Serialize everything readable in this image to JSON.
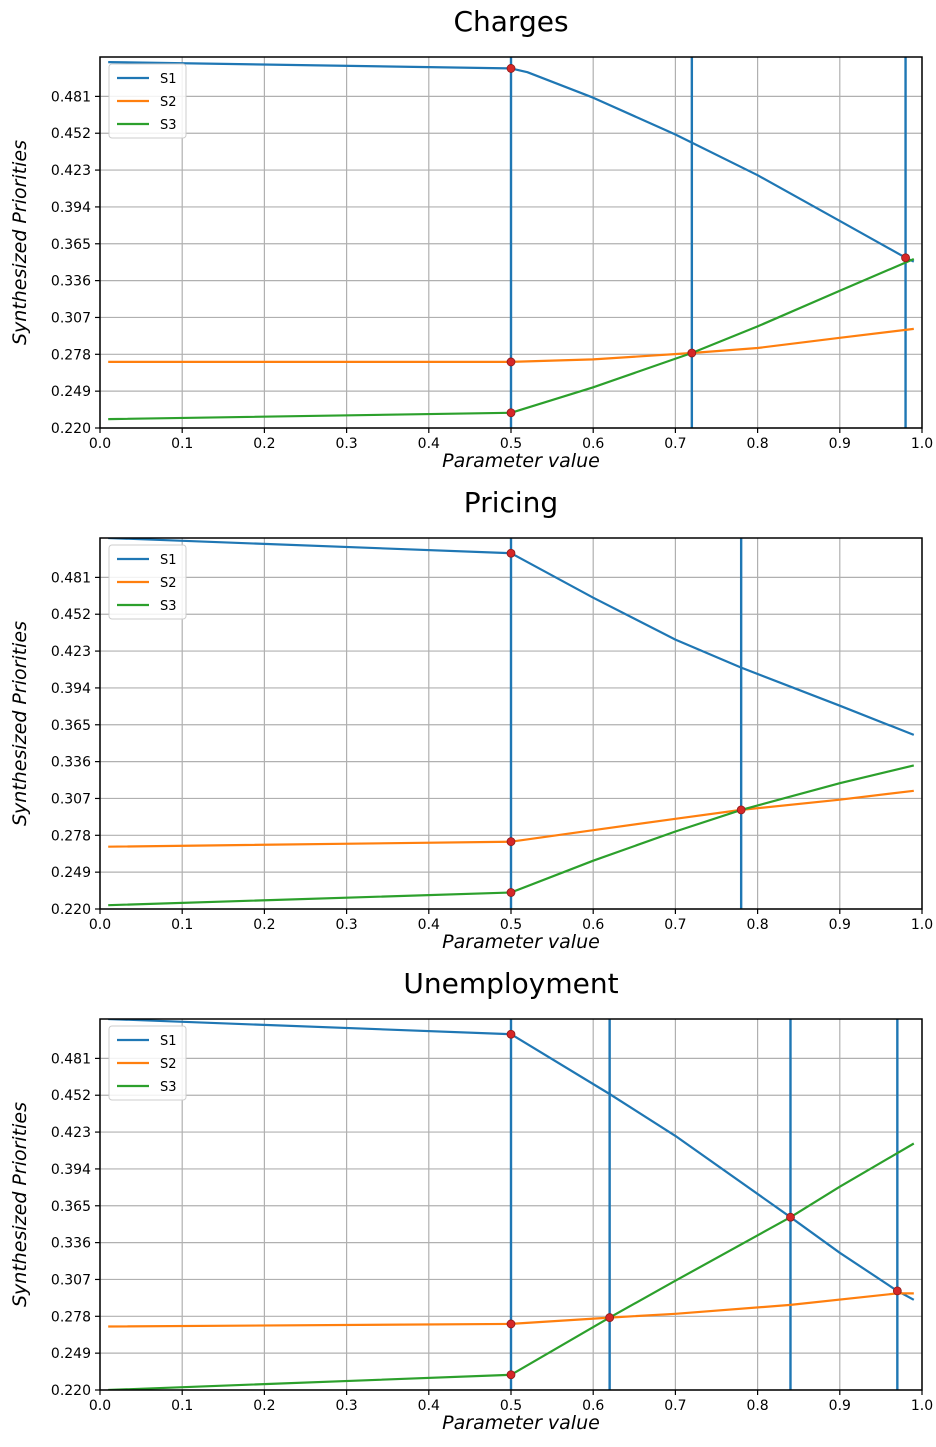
{
  "chart_data": [
    {
      "type": "line",
      "title": "Charges",
      "xlabel": "Parameter value",
      "ylabel": "Synthesized Priorities",
      "xlim": [
        0.0,
        1.0
      ],
      "ylim": [
        0.22,
        0.512
      ],
      "xticks": [
        "0.0",
        "0.1",
        "0.2",
        "0.3",
        "0.4",
        "0.5",
        "0.6",
        "0.7",
        "0.8",
        "0.9",
        "1.0"
      ],
      "yticks": [
        "0.220",
        "0.249",
        "0.278",
        "0.307",
        "0.336",
        "0.365",
        "0.394",
        "0.423",
        "0.452",
        "0.481"
      ],
      "grid": true,
      "legend": "top-left",
      "series": [
        {
          "name": "S1",
          "color": "#1f77b4",
          "x": [
            0.01,
            0.5,
            0.52,
            0.6,
            0.7,
            0.8,
            0.9,
            0.98,
            0.99
          ],
          "y": [
            0.508,
            0.503,
            0.5,
            0.48,
            0.451,
            0.419,
            0.383,
            0.354,
            0.351
          ]
        },
        {
          "name": "S2",
          "color": "#ff7f0e",
          "x": [
            0.01,
            0.5,
            0.6,
            0.72,
            0.8,
            0.9,
            0.99
          ],
          "y": [
            0.272,
            0.272,
            0.274,
            0.279,
            0.283,
            0.291,
            0.298
          ]
        },
        {
          "name": "S3",
          "color": "#2ca02c",
          "x": [
            0.01,
            0.5,
            0.6,
            0.72,
            0.8,
            0.9,
            0.99
          ],
          "y": [
            0.227,
            0.232,
            0.252,
            0.279,
            0.3,
            0.328,
            0.353
          ]
        }
      ],
      "vlines": [
        0.5,
        0.72,
        0.98
      ],
      "markers": [
        [
          0.5,
          0.503
        ],
        [
          0.5,
          0.272
        ],
        [
          0.5,
          0.232
        ],
        [
          0.72,
          0.279
        ],
        [
          0.98,
          0.354
        ]
      ]
    },
    {
      "type": "line",
      "title": "Pricing",
      "xlabel": "Parameter value",
      "ylabel": "Synthesized Priorities",
      "xlim": [
        0.0,
        1.0
      ],
      "ylim": [
        0.22,
        0.512
      ],
      "xticks": [
        "0.0",
        "0.1",
        "0.2",
        "0.3",
        "0.4",
        "0.5",
        "0.6",
        "0.7",
        "0.8",
        "0.9",
        "1.0"
      ],
      "yticks": [
        "0.220",
        "0.249",
        "0.278",
        "0.307",
        "0.336",
        "0.365",
        "0.394",
        "0.423",
        "0.452",
        "0.481"
      ],
      "grid": true,
      "legend": "top-left",
      "series": [
        {
          "name": "S1",
          "color": "#1f77b4",
          "x": [
            0.01,
            0.5,
            0.6,
            0.7,
            0.78,
            0.9,
            0.99
          ],
          "y": [
            0.512,
            0.5,
            0.465,
            0.432,
            0.41,
            0.38,
            0.357
          ]
        },
        {
          "name": "S2",
          "color": "#ff7f0e",
          "x": [
            0.01,
            0.5,
            0.6,
            0.7,
            0.78,
            0.9,
            0.99
          ],
          "y": [
            0.269,
            0.273,
            0.282,
            0.291,
            0.298,
            0.306,
            0.313
          ]
        },
        {
          "name": "S3",
          "color": "#2ca02c",
          "x": [
            0.01,
            0.5,
            0.6,
            0.7,
            0.78,
            0.9,
            0.99
          ],
          "y": [
            0.223,
            0.233,
            0.258,
            0.281,
            0.298,
            0.319,
            0.333
          ]
        }
      ],
      "vlines": [
        0.5,
        0.78
      ],
      "markers": [
        [
          0.5,
          0.5
        ],
        [
          0.5,
          0.273
        ],
        [
          0.5,
          0.233
        ],
        [
          0.78,
          0.298
        ]
      ]
    },
    {
      "type": "line",
      "title": "Unemployment",
      "xlabel": "Parameter value",
      "ylabel": "Synthesized Priorities",
      "xlim": [
        0.0,
        1.0
      ],
      "ylim": [
        0.22,
        0.512
      ],
      "xticks": [
        "0.0",
        "0.1",
        "0.2",
        "0.3",
        "0.4",
        "0.5",
        "0.6",
        "0.7",
        "0.8",
        "0.9",
        "1.0"
      ],
      "yticks": [
        "0.220",
        "0.249",
        "0.278",
        "0.307",
        "0.336",
        "0.365",
        "0.394",
        "0.423",
        "0.452",
        "0.481"
      ],
      "grid": true,
      "legend": "top-left",
      "series": [
        {
          "name": "S1",
          "color": "#1f77b4",
          "x": [
            0.01,
            0.5,
            0.62,
            0.7,
            0.84,
            0.9,
            0.97,
            0.99
          ],
          "y": [
            0.512,
            0.5,
            0.453,
            0.42,
            0.356,
            0.328,
            0.298,
            0.291
          ]
        },
        {
          "name": "S2",
          "color": "#ff7f0e",
          "x": [
            0.01,
            0.5,
            0.62,
            0.7,
            0.84,
            0.97,
            0.99
          ],
          "y": [
            0.27,
            0.272,
            0.277,
            0.28,
            0.287,
            0.296,
            0.296
          ]
        },
        {
          "name": "S3",
          "color": "#2ca02c",
          "x": [
            0.01,
            0.5,
            0.62,
            0.7,
            0.84,
            0.9,
            0.99
          ],
          "y": [
            0.22,
            0.232,
            0.277,
            0.306,
            0.356,
            0.38,
            0.414
          ]
        }
      ],
      "vlines": [
        0.5,
        0.62,
        0.84,
        0.97
      ],
      "markers": [
        [
          0.5,
          0.5
        ],
        [
          0.5,
          0.272
        ],
        [
          0.5,
          0.232
        ],
        [
          0.62,
          0.277
        ],
        [
          0.84,
          0.356
        ],
        [
          0.97,
          0.298
        ]
      ]
    }
  ]
}
